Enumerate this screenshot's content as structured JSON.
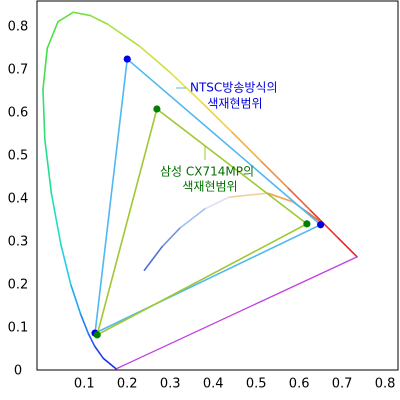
{
  "chart_data": {
    "type": "chromaticity",
    "xlim": [
      -0.01,
      0.83
    ],
    "ylim": [
      0,
      0.86
    ],
    "xticks": [
      0.1,
      0.2,
      0.3,
      0.4,
      0.5,
      0.6,
      0.7,
      0.8
    ],
    "yticks": [
      0,
      0.1,
      0.2,
      0.3,
      0.4,
      0.5,
      0.6,
      0.7,
      0.8
    ],
    "locus": {
      "x": [
        0.1741,
        0.144,
        0.1241,
        0.1096,
        0.0913,
        0.0687,
        0.0454,
        0.0235,
        0.0082,
        0.0039,
        0.0139,
        0.0389,
        0.0743,
        0.1142,
        0.1547,
        0.2296,
        0.3016,
        0.3731,
        0.4441,
        0.5125,
        0.5752,
        0.627,
        0.6915,
        0.7347
      ],
      "y": [
        0.005,
        0.0297,
        0.0578,
        0.0868,
        0.1327,
        0.2007,
        0.295,
        0.4127,
        0.5384,
        0.6548,
        0.7502,
        0.812,
        0.8338,
        0.8262,
        0.8059,
        0.7543,
        0.6923,
        0.6245,
        0.5547,
        0.4866,
        0.4242,
        0.3725,
        0.3083,
        0.2653
      ],
      "colors": [
        "#3020c0",
        "#2030e0",
        "#2040f0",
        "#2060f0",
        "#2080f0",
        "#20a8f0",
        "#20d0e0",
        "#20e0c0",
        "#20e090",
        "#30e070",
        "#40e050",
        "#50e040",
        "#60e040",
        "#70e040",
        "#90e040",
        "#b0e040",
        "#d0e040",
        "#e8e040",
        "#f0d040",
        "#f0b040",
        "#f09040",
        "#f06040",
        "#f03030",
        "#f02020"
      ],
      "closing_color": "#c040e0"
    },
    "planckian": {
      "x": [
        0.6528,
        0.5857,
        0.5267,
        0.4369,
        0.3805,
        0.3221,
        0.2807,
        0.2399
      ],
      "y": [
        0.3444,
        0.3931,
        0.4133,
        0.4041,
        0.3768,
        0.3318,
        0.2884,
        0.2342
      ],
      "colors": [
        "#f04020",
        "#f07030",
        "#f0a050",
        "#f0d0a0",
        "#e0e0f0",
        "#a0c0f0",
        "#7090e0",
        "#5070d0"
      ]
    },
    "gamuts": [
      {
        "label": [
          "NTSC방송방식의",
          "색재현범위"
        ],
        "x": [
          0.65,
          0.2,
          0.125
        ],
        "y": [
          0.34,
          0.725,
          0.088
        ],
        "line_color": "#50b8f0",
        "point_color": "#0000ee",
        "text_color": "#0000dd"
      },
      {
        "label": [
          "삼성 CX714MP의",
          "색재현범위"
        ],
        "x": [
          0.618,
          0.269,
          0.13
        ],
        "y": [
          0.342,
          0.609,
          0.084
        ],
        "line_color": "#a0c830",
        "point_color": "#008000",
        "text_color": "#007000"
      }
    ]
  }
}
